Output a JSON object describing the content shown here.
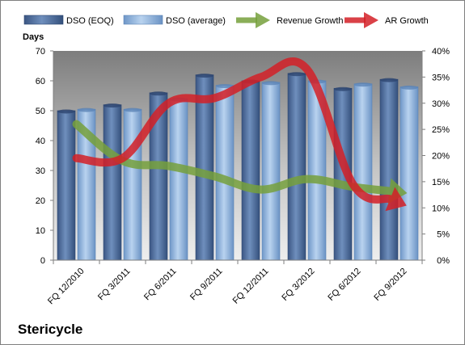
{
  "chart_data": {
    "type": "bar",
    "company": "Stericycle",
    "categories": [
      "FQ 12/2010",
      "FQ 3/2011",
      "FQ 6/2011",
      "FQ 9/2011",
      "FQ 12/2011",
      "FQ 3/2012",
      "FQ 6/2012",
      "FQ 9/2012"
    ],
    "y_label": "Days",
    "ylim": [
      0,
      70
    ],
    "yticks": [
      0,
      10,
      20,
      30,
      40,
      50,
      60,
      70
    ],
    "y2lim": [
      0,
      0.4
    ],
    "y2ticks": [
      "0%",
      "5%",
      "10%",
      "15%",
      "20%",
      "25%",
      "30%",
      "35%",
      "40%"
    ],
    "legend_position": "top",
    "plot_background": "gradient-gray",
    "series": [
      {
        "name": "DSO (EOQ)",
        "kind": "bar",
        "axis": "left",
        "color": "#4f6d9b",
        "values": [
          50,
          52,
          56,
          62,
          60,
          62.5,
          57.5,
          60.5
        ]
      },
      {
        "name": "DSO (average)",
        "kind": "bar",
        "axis": "left",
        "color": "#8fb3dc",
        "values": [
          50.5,
          50.5,
          54,
          58.5,
          59.5,
          60,
          59,
          58
        ]
      },
      {
        "name": "Revenue Growth",
        "kind": "arrow-line",
        "axis": "right",
        "color": "#76a03c",
        "values": [
          0.26,
          0.19,
          0.18,
          0.16,
          0.135,
          0.155,
          0.14,
          0.13
        ]
      },
      {
        "name": "AR Growth",
        "kind": "arrow-line",
        "axis": "right",
        "color": "#d42027",
        "values": [
          0.195,
          0.195,
          0.3,
          0.31,
          0.35,
          0.365,
          0.145,
          0.11
        ]
      }
    ]
  }
}
